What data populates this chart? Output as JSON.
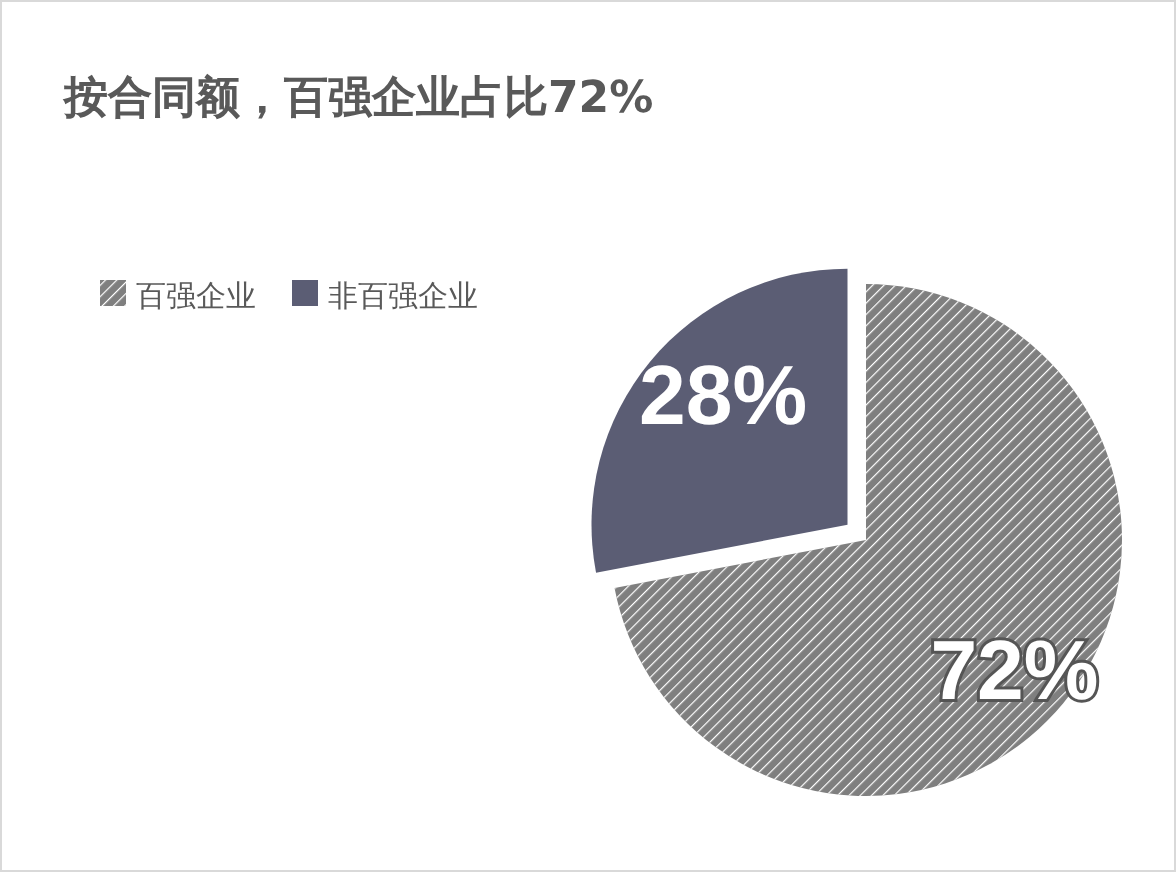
{
  "chart_data": {
    "type": "pie",
    "title": "按合同额，百强企业占比72%",
    "categories": [
      "百强企业",
      "非百强企业"
    ],
    "values": [
      72,
      28
    ],
    "colors": [
      "#7f7f7f",
      "#5b5d74"
    ],
    "value_labels": [
      "72%",
      "28%"
    ],
    "legend": "top left"
  }
}
